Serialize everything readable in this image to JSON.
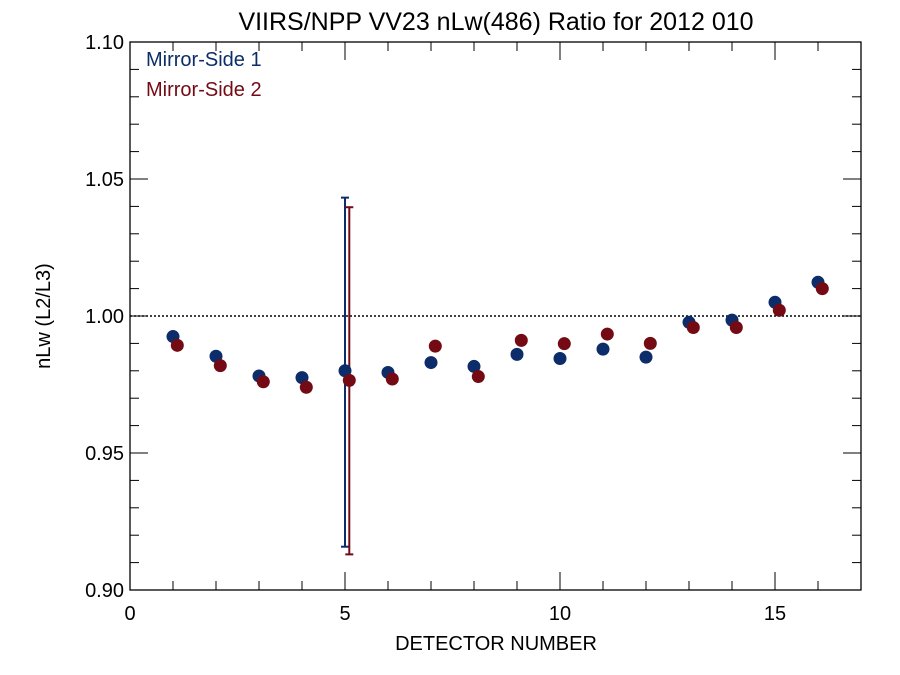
{
  "chart_data": {
    "type": "scatter",
    "title": "VIIRS/NPP VV23 nLw(486) Ratio for 2012 010",
    "xlabel": "DETECTOR NUMBER",
    "ylabel": "nLw (L2/L3)",
    "xlim": [
      0,
      17
    ],
    "ylim": [
      0.9,
      1.1
    ],
    "xticks": [
      0,
      5,
      10,
      15
    ],
    "xtick_labels": [
      "0",
      "5",
      "10",
      "15"
    ],
    "yticks": [
      0.9,
      0.95,
      1.0,
      1.05,
      1.1
    ],
    "ytick_labels": [
      "0.90",
      "0.95",
      "1.00",
      "1.05",
      "1.10"
    ],
    "reference_line": 1.0,
    "legend_position": "top-left",
    "series": [
      {
        "name": "Mirror-Side 1",
        "color": "#0c2d69",
        "x": [
          1,
          2,
          3,
          4,
          5,
          6,
          7,
          8,
          9,
          10,
          11,
          12,
          13,
          14,
          15,
          16
        ],
        "y": [
          0.9925,
          0.9853,
          0.9781,
          0.9775,
          0.98,
          0.9794,
          0.983,
          0.9816,
          0.986,
          0.9845,
          0.9879,
          0.985,
          0.9977,
          0.9985,
          1.005,
          1.0123
        ],
        "error_bars": [
          {
            "x": 5,
            "low": 0.9158,
            "high": 1.0432
          }
        ]
      },
      {
        "name": "Mirror-Side 2",
        "color": "#730a14",
        "x": [
          1.1,
          2.1,
          3.1,
          4.1,
          5.1,
          6.1,
          7.1,
          8.1,
          9.1,
          10.1,
          11.1,
          12.1,
          13.1,
          14.1,
          15.1,
          16.1
        ],
        "y": [
          0.9893,
          0.9819,
          0.976,
          0.974,
          0.9765,
          0.977,
          0.989,
          0.9779,
          0.9911,
          0.9899,
          0.9934,
          0.99,
          0.9958,
          0.9958,
          1.0021,
          1.01
        ],
        "error_bars": [
          {
            "x": 5.1,
            "low": 0.913,
            "high": 1.0397
          }
        ]
      }
    ]
  }
}
